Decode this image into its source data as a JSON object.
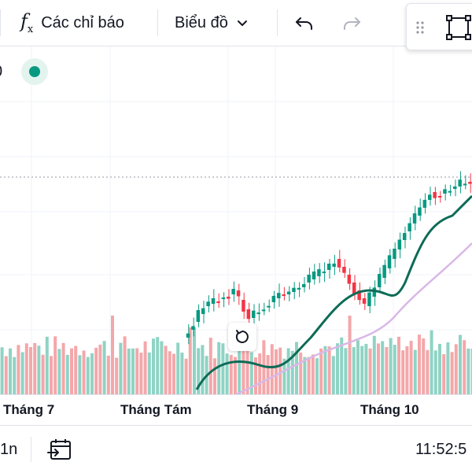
{
  "toolbar": {
    "indicators_label": "Các chỉ báo",
    "chart_type_label": "Biểu đồ"
  },
  "legend": {
    "fragment": "0"
  },
  "time_axis": {
    "labels": [
      "Tháng 7",
      "Tháng Tám",
      "Tháng 9",
      "Tháng 10"
    ]
  },
  "bottom_bar": {
    "interval": "1n",
    "time": "11:52:5"
  },
  "colors": {
    "up": "#089981",
    "down": "#f23645",
    "volume_up": "#8fd3c4",
    "volume_down": "#f4a7aa",
    "ma_fast": "#0d6b57",
    "ma_slow": "#d9b8e6"
  },
  "icons": {
    "indicators": "fx-icon",
    "chart_type_dropdown": "chevron-down-icon",
    "undo": "undo-icon",
    "redo": "redo-icon",
    "drag_handle": "drag-handle-icon",
    "fullscreen": "fullscreen-icon",
    "reset": "reset-chart-icon",
    "date_range": "calendar-goto-icon"
  }
}
